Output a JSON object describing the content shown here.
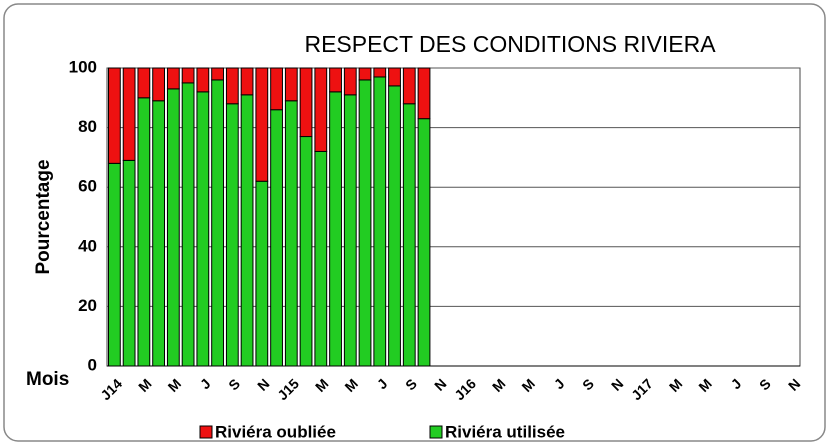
{
  "chart_data": {
    "type": "stacked_bar",
    "title": "RESPECT DES CONDITIONS RIVIERA",
    "y_label": "Pourcentage",
    "x_label": "Mois",
    "categories": [
      "J14",
      null,
      "M",
      null,
      "M",
      null,
      "J",
      null,
      "S",
      null,
      "N",
      null,
      "J15",
      null,
      "M",
      null,
      "M",
      null,
      "J",
      null,
      "S",
      null,
      "N",
      null,
      "J16",
      null,
      "M",
      null,
      "M",
      null,
      "J",
      null,
      "S",
      null,
      "N",
      null,
      "J17",
      null,
      "M",
      null,
      "M",
      null,
      "J",
      null,
      "S",
      null,
      "N"
    ],
    "series": [
      {
        "name": "Riviéra utilisée",
        "color": "#22cc22",
        "values": [
          68,
          69,
          90,
          89,
          93,
          95,
          92,
          96,
          88,
          91,
          62,
          86,
          89,
          77,
          72,
          92,
          91,
          96,
          97,
          94,
          88,
          83,
          null,
          null,
          null,
          null,
          null,
          null,
          null,
          null,
          null,
          null,
          null,
          null,
          null,
          null,
          null,
          null,
          null,
          null,
          null,
          null,
          null,
          null,
          null,
          null,
          null
        ]
      },
      {
        "name": "Riviéra oubliée",
        "color": "#ee1111",
        "values": [
          32,
          31,
          10,
          11,
          7,
          5,
          8,
          4,
          12,
          9,
          38,
          14,
          11,
          23,
          28,
          8,
          9,
          4,
          3,
          6,
          12,
          17,
          null,
          null,
          null,
          null,
          null,
          null,
          null,
          null,
          null,
          null,
          null,
          null,
          null,
          null,
          null,
          null,
          null,
          null,
          null,
          null,
          null,
          null,
          null,
          null,
          null
        ]
      }
    ],
    "ylim": [
      0,
      100
    ],
    "yticks": [
      0,
      20,
      40,
      60,
      80,
      100
    ],
    "grid": true
  }
}
